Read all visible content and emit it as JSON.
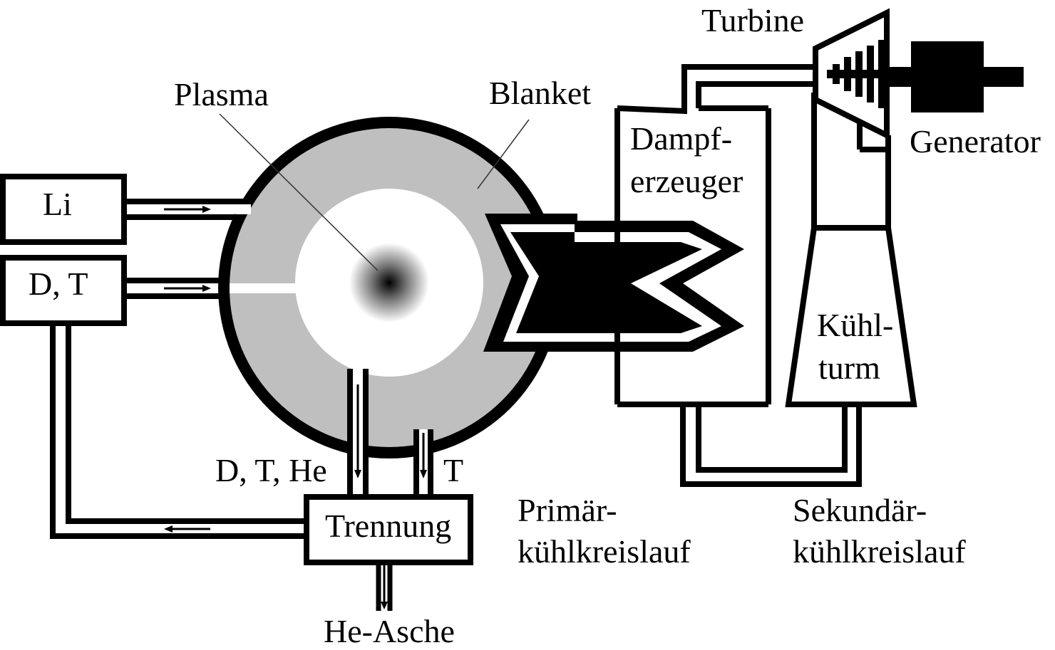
{
  "labels": {
    "plasma": "Plasma",
    "blanket": "Blanket",
    "li": "Li",
    "dt": "D, T",
    "dthe": "D, T, He",
    "t": "T",
    "separation": "Trennung",
    "he_ash": "He-Asche",
    "steam_gen_1": "Dampf-",
    "steam_gen_2": "erzeuger",
    "turbine": "Turbine",
    "generator": "Generator",
    "cooling_tower_1": "Kühl-",
    "cooling_tower_2": "turm",
    "primary_1": "Primär-",
    "primary_2": "kühlkreislauf",
    "secondary_1": "Sekundär-",
    "secondary_2": "kühlkreislauf"
  },
  "colors": {
    "line": "#000000",
    "blanket": "#bfbfbf",
    "background": "#ffffff"
  }
}
